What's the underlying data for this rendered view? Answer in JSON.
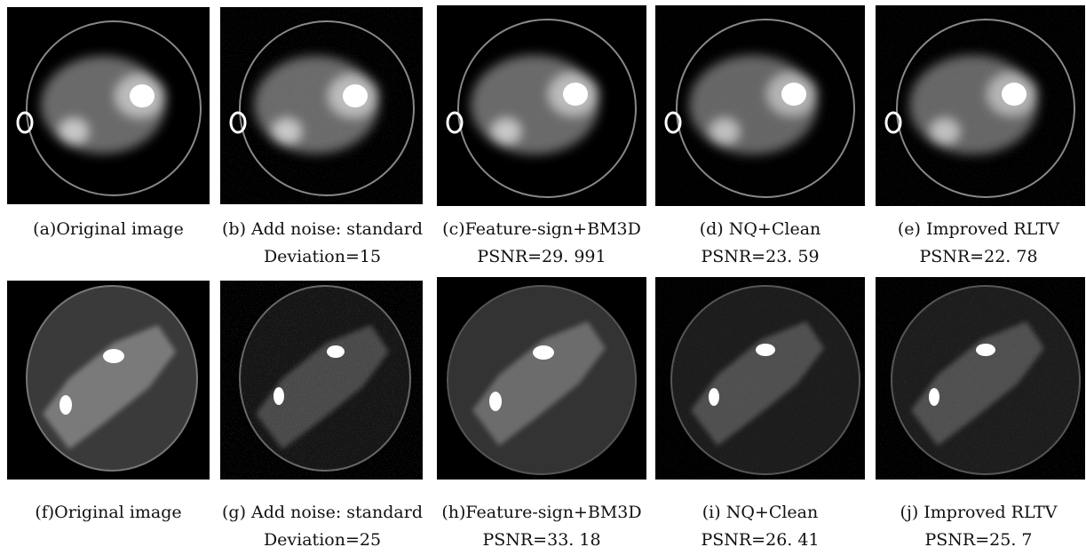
{
  "row1": {
    "a": {
      "caption": "(a)Original image"
    },
    "b": {
      "caption": "(b) Add noise: standard",
      "caption2": "Deviation=15"
    },
    "c": {
      "caption": "(c)Feature-sign+BM3D",
      "caption2": "PSNR=29. 991"
    },
    "d": {
      "caption": "(d) NQ+Clean",
      "caption2": "PSNR=23. 59"
    },
    "e": {
      "caption": "(e) Improved RLTV",
      "caption2": "PSNR=22. 78"
    }
  },
  "row2": {
    "f": {
      "caption": "(f)Original image"
    },
    "g": {
      "caption": "(g) Add noise: standard",
      "caption2": "Deviation=25"
    },
    "h": {
      "caption": "(h)Feature-sign+BM3D",
      "caption2": "PSNR=33. 18"
    },
    "i": {
      "caption": "(i) NQ+Clean",
      "caption2": "PSNR=26. 41"
    },
    "j": {
      "caption": "(j) Improved RLTV",
      "caption2": "PSNR=25. 7"
    }
  }
}
